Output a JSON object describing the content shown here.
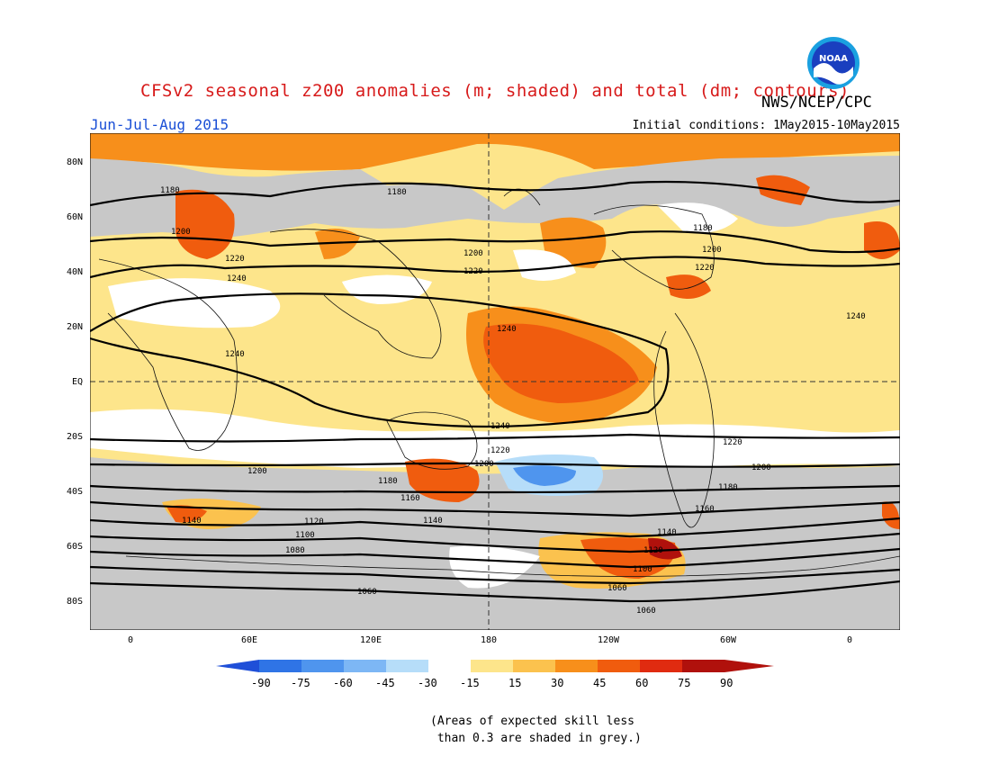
{
  "title": "CFSv2 seasonal z200 anomalies (m; shaded) and total (dm; contours)",
  "agency": "NWS/NCEP/CPC",
  "logo_text": "NOAA",
  "season": "Jun-Jul-Aug 2015",
  "initial_conditions": "Initial conditions: 1May2015-10May2015",
  "lat_labels": [
    "80N",
    "60N",
    "40N",
    "20N",
    "EQ",
    "20S",
    "40S",
    "60S",
    "80S"
  ],
  "lon_labels": [
    "0",
    "60E",
    "120E",
    "180",
    "120W",
    "60W",
    "0"
  ],
  "colorbar": {
    "labels": [
      "-90",
      "-75",
      "-60",
      "-45",
      "-30",
      "-15",
      "15",
      "30",
      "45",
      "60",
      "75",
      "90"
    ],
    "colors": [
      "#1f4fd8",
      "#2f74e6",
      "#4f95ee",
      "#7db7f5",
      "#b6ddf9",
      "#ffffff",
      "#fde58b",
      "#fbc24e",
      "#f78f1b",
      "#f05c0e",
      "#e02b10",
      "#b0110c"
    ]
  },
  "contour_labels": {
    "c1180": "1180",
    "c1200": "1200",
    "c1220": "1220",
    "c1240": "1240",
    "c1160": "1160",
    "c1140": "1140",
    "c1120": "1120",
    "c1100": "1100",
    "c1080": "1080",
    "c1060": "1060"
  },
  "note": "(Areas of expected skill less\n than 0.3 are shaded in grey.)"
}
